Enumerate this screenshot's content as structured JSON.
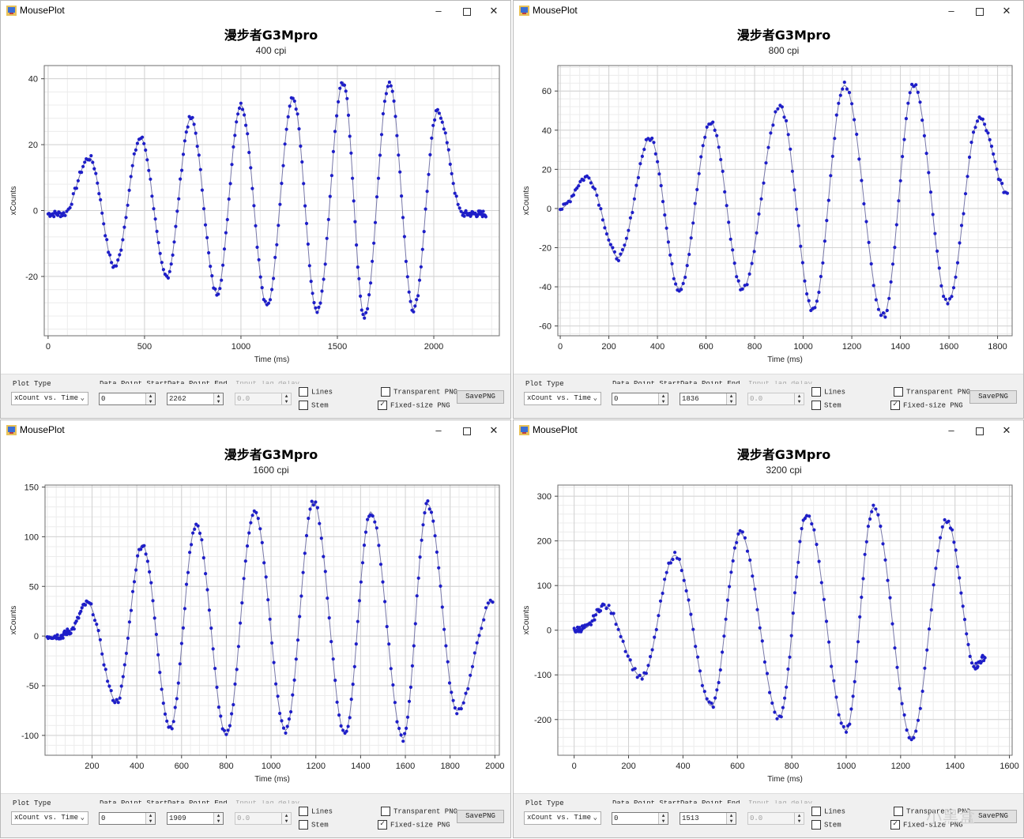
{
  "windows": [
    {
      "title": "MousePlot",
      "controls": {
        "plot_type_label": "Plot Type",
        "plot_type_value": "xCount vs. Time",
        "start_label": "Data Point Start",
        "start_value": "0",
        "end_label": "Data Point End",
        "end_value": "2262",
        "lag_label": "Input lag delay",
        "lag_value": "0.0",
        "lines_label": "Lines",
        "lines_checked": false,
        "stem_label": "Stem",
        "stem_checked": false,
        "transparent_label": "Transparent PNG",
        "transparent_checked": false,
        "fixed_label": "Fixed-size PNG",
        "fixed_checked": true,
        "save_label": "SavePNG"
      }
    },
    {
      "title": "MousePlot",
      "controls": {
        "plot_type_label": "Plot Type",
        "plot_type_value": "xCount vs. Time",
        "start_label": "Data Point Start",
        "start_value": "0",
        "end_label": "Data Point End",
        "end_value": "1836",
        "lag_label": "Input lag delay",
        "lag_value": "0.0",
        "lines_label": "Lines",
        "lines_checked": false,
        "stem_label": "Stem",
        "stem_checked": false,
        "transparent_label": "Transparent PNG",
        "transparent_checked": false,
        "fixed_label": "Fixed-size PNG",
        "fixed_checked": true,
        "save_label": "SavePNG"
      }
    },
    {
      "title": "MousePlot",
      "controls": {
        "plot_type_label": "Plot Type",
        "plot_type_value": "xCount vs. Time",
        "start_label": "Data Point Start",
        "start_value": "0",
        "end_label": "Data Point End",
        "end_value": "1909",
        "lag_label": "Input lag delay",
        "lag_value": "0.0",
        "lines_label": "Lines",
        "lines_checked": false,
        "stem_label": "Stem",
        "stem_checked": false,
        "transparent_label": "Transparent PNG",
        "transparent_checked": false,
        "fixed_label": "Fixed-size PNG",
        "fixed_checked": true,
        "save_label": "SavePNG"
      }
    },
    {
      "title": "MousePlot",
      "controls": {
        "plot_type_label": "Plot Type",
        "plot_type_value": "xCount vs. Time",
        "start_label": "Data Point Start",
        "start_value": "0",
        "end_label": "Data Point End",
        "end_value": "1513",
        "lag_label": "Input lag delay",
        "lag_value": "0.0",
        "lines_label": "Lines",
        "lines_checked": false,
        "stem_label": "Stem",
        "stem_checked": false,
        "transparent_label": "Transparent PNG",
        "transparent_checked": false,
        "fixed_label": "Fixed-size PNG",
        "fixed_checked": true,
        "save_label": "SavePNG"
      }
    }
  ],
  "chart_data": [
    {
      "type": "scatter",
      "title": "漫步者G3Mpro",
      "subtitle": "400 cpi",
      "xlabel": "Time (ms)",
      "ylabel": "xCounts",
      "xlim": [
        -20,
        2340
      ],
      "ylim": [
        -38,
        44
      ],
      "xticks": [
        0,
        500,
        1000,
        1500,
        2000
      ],
      "yticks": [
        -20,
        0,
        20,
        40
      ],
      "grid": true,
      "marker_color": "#1e1ec8",
      "fit_color": "#7878a8",
      "series": [
        {
          "x": [
            0,
            80,
            215,
            345,
            480,
            615,
            740,
            875,
            1000,
            1135,
            1270,
            1395,
            1530,
            1640,
            1770,
            1895,
            2020,
            2150,
            2215,
            2270
          ],
          "y": [
            -1,
            -1,
            16,
            -17,
            22,
            -20,
            28,
            -25,
            32,
            -29,
            34,
            -31,
            39,
            -32,
            39,
            -30,
            30,
            -1,
            -1,
            -1
          ]
        }
      ]
    },
    {
      "type": "scatter",
      "title": "漫步者G3Mpro",
      "subtitle": "800 cpi",
      "xlabel": "Time (ms)",
      "ylabel": "xCounts",
      "xlim": [
        -10,
        1860
      ],
      "ylim": [
        -65,
        73
      ],
      "xticks": [
        0,
        200,
        400,
        600,
        800,
        1000,
        1200,
        1400,
        1600,
        1800
      ],
      "yticks": [
        -60,
        -40,
        -20,
        0,
        20,
        40,
        60
      ],
      "grid": true,
      "marker_color": "#1e1ec8",
      "fit_color": "#7878a8",
      "series": [
        {
          "x": [
            0,
            110,
            240,
            370,
            490,
            620,
            750,
            905,
            1040,
            1170,
            1330,
            1455,
            1595,
            1725,
            1840
          ],
          "y": [
            0,
            16,
            -25,
            36,
            -41,
            44,
            -41,
            52,
            -52,
            63,
            -55,
            63,
            -48,
            46,
            8
          ]
        }
      ]
    },
    {
      "type": "scatter",
      "title": "漫步者G3Mpro",
      "subtitle": "1600 cpi",
      "xlabel": "Time (ms)",
      "ylabel": "xCounts",
      "xlim": [
        -10,
        2020
      ],
      "ylim": [
        -120,
        152
      ],
      "xticks": [
        200,
        400,
        600,
        800,
        1000,
        1200,
        1400,
        1600,
        1800,
        2000
      ],
      "yticks": [
        -100,
        -50,
        0,
        50,
        100,
        150
      ],
      "grid": true,
      "marker_color": "#1e1ec8",
      "fit_color": "#7878a8",
      "series": [
        {
          "x": [
            0,
            60,
            100,
            180,
            310,
            425,
            550,
            665,
            800,
            925,
            1065,
            1190,
            1330,
            1445,
            1590,
            1700,
            1830,
            1990
          ],
          "y": [
            0,
            0,
            5,
            33,
            -66,
            92,
            -92,
            112,
            -100,
            125,
            -95,
            135,
            -98,
            125,
            -103,
            133,
            -75,
            35
          ]
        }
      ]
    },
    {
      "type": "scatter",
      "title": "漫步者G3Mpro",
      "subtitle": "3200 cpi",
      "xlabel": "Time (ms)",
      "ylabel": "xCounts",
      "xlim": [
        -60,
        1610
      ],
      "ylim": [
        -280,
        325
      ],
      "xticks": [
        0,
        200,
        400,
        600,
        800,
        1000,
        1200,
        1400,
        1600
      ],
      "yticks": [
        -200,
        -100,
        0,
        100,
        200,
        300
      ],
      "grid": true,
      "marker_color": "#1e1ec8",
      "fit_color": "#7878a8",
      "series": [
        {
          "x": [
            0,
            40,
            110,
            250,
            370,
            505,
            610,
            755,
            855,
            1000,
            1100,
            1240,
            1370,
            1475,
            1510
          ],
          "y": [
            0,
            5,
            55,
            -105,
            168,
            -170,
            218,
            -195,
            260,
            -225,
            275,
            -240,
            245,
            -80,
            -60
          ]
        }
      ]
    }
  ],
  "watermark_text": "小黑盒"
}
